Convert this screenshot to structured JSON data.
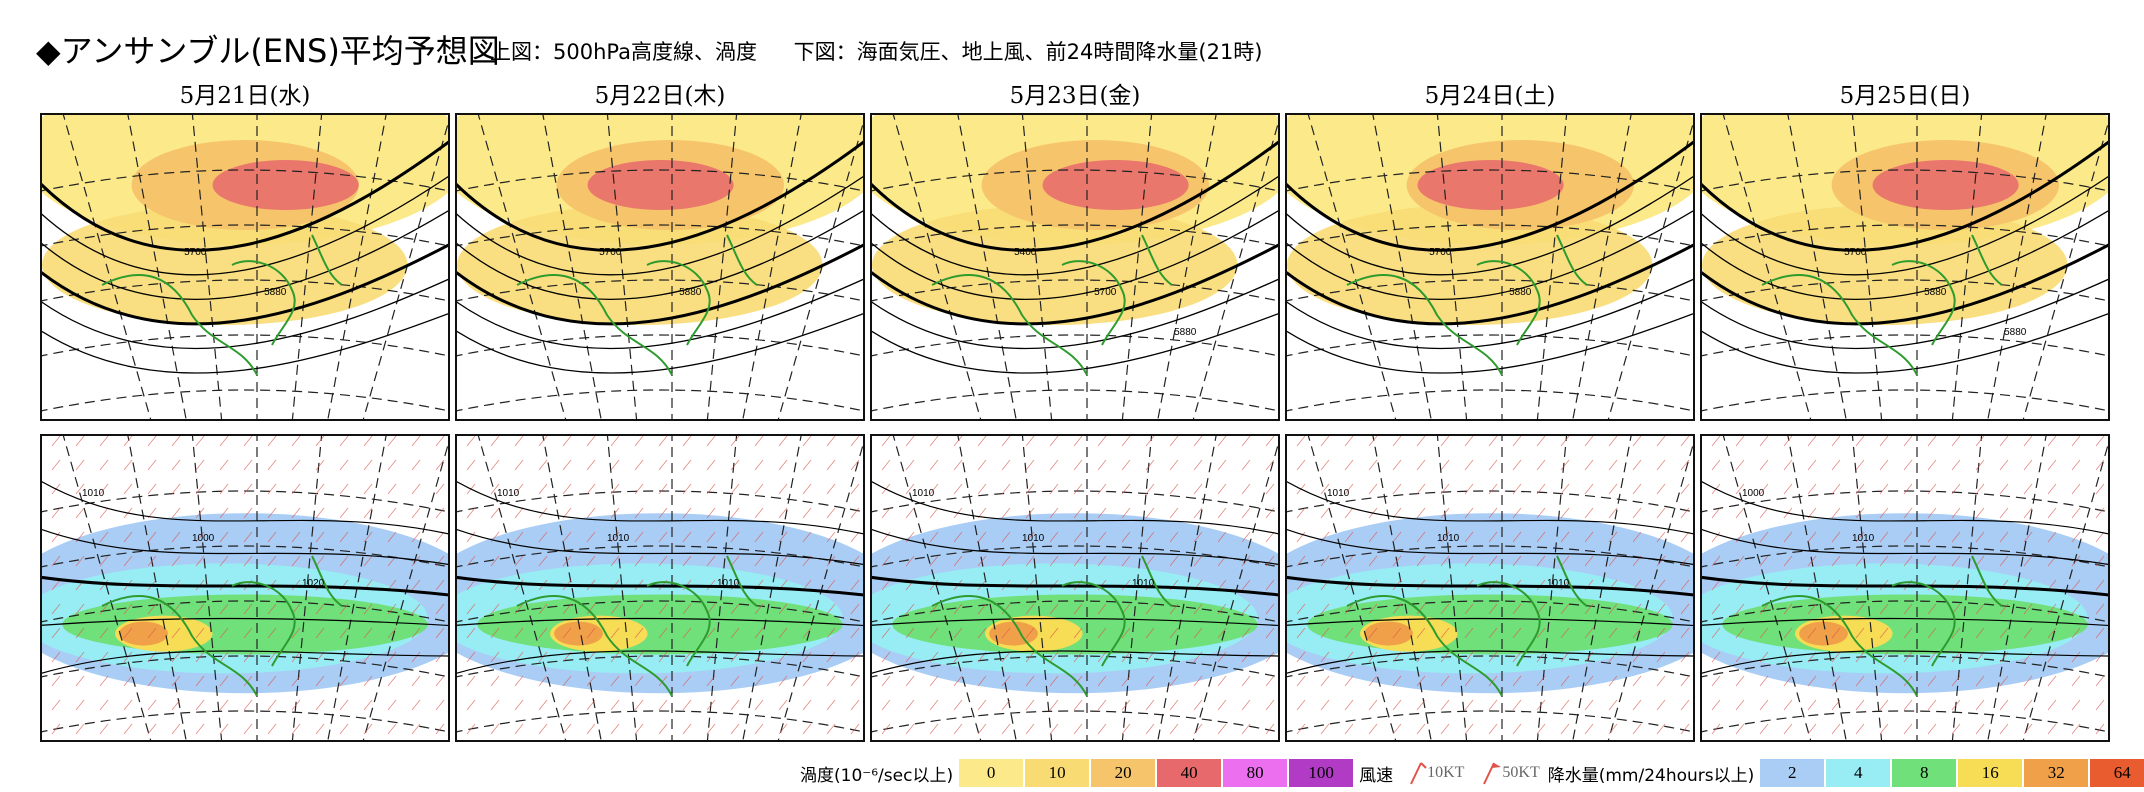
{
  "header": {
    "title": "◆アンサンブル(ENS)平均予想図",
    "upper_desc": "上図：500hPa高度線、渦度",
    "lower_desc": "下図：海面気圧、地上風、前24時間降水量(21時)"
  },
  "dates": [
    "5月21日(水)",
    "5月22日(木)",
    "5月23日(金)",
    "5月24日(土)",
    "5月25日(日)"
  ],
  "upper_labels": [
    [
      "5700",
      "5880"
    ],
    [
      "5700",
      "5880"
    ],
    [
      "5400",
      "5700",
      "5880"
    ],
    [
      "5700",
      "5880"
    ],
    [
      "5700",
      "5880",
      "5880"
    ]
  ],
  "lower_labels": [
    [
      "1010",
      "1000",
      "1020"
    ],
    [
      "1010",
      "1010",
      "1010"
    ],
    [
      "1010",
      "1010",
      "1010"
    ],
    [
      "1010",
      "1010",
      "1010"
    ],
    [
      "1000",
      "1010"
    ]
  ],
  "legend": {
    "vorticity_label": "渦度(10⁻⁶/sec以上)",
    "vorticity": [
      {
        "value": "0",
        "color": "#fbe98a"
      },
      {
        "value": "10",
        "color": "#f8dc73"
      },
      {
        "value": "20",
        "color": "#f6c56b"
      },
      {
        "value": "40",
        "color": "#e8696c"
      },
      {
        "value": "80",
        "color": "#ec6ff0"
      },
      {
        "value": "100",
        "color": "#b23bc6"
      }
    ],
    "wind_label": "風速",
    "wind_10": "10KT",
    "wind_50": "50KT",
    "precip_label": "降水量(mm/24hours以上)",
    "precip": [
      {
        "value": "2",
        "color": "#a9cdf4"
      },
      {
        "value": "4",
        "color": "#98ecf4"
      },
      {
        "value": "8",
        "color": "#6fe07a"
      },
      {
        "value": "16",
        "color": "#f6dd55"
      },
      {
        "value": "32",
        "color": "#f0a048"
      },
      {
        "value": "64",
        "color": "#e95c2f"
      }
    ]
  }
}
